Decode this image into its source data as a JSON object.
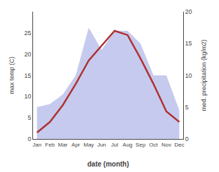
{
  "chart_data": {
    "type": "line",
    "categories": [
      "Jan",
      "Feb",
      "Mar",
      "Apr",
      "May",
      "Jun",
      "Jul",
      "Aug",
      "Sep",
      "Oct",
      "Nov",
      "Dec"
    ],
    "series": [
      {
        "type": "area",
        "color": "#c5caee",
        "axis": "y2",
        "values": [
          5.0,
          5.5,
          7.0,
          10.0,
          17.5,
          14.0,
          17.0,
          17.0,
          15.0,
          10.0,
          10.0,
          4.5
        ]
      },
      {
        "type": "line",
        "color": "#b03030",
        "values": [
          1.5,
          4.0,
          8.0,
          13.0,
          18.5,
          22.0,
          25.5,
          24.5,
          19.0,
          13.0,
          6.5,
          4.0
        ]
      }
    ],
    "xlabel": "date (month)",
    "ylabel": "max temp (C)",
    "y2label": "med. precipitation (kg/m2)",
    "ylim": [
      0,
      30
    ],
    "yticks": [
      0,
      5,
      10,
      15,
      20,
      25
    ],
    "y2lim": [
      0,
      20
    ],
    "y2ticks": [
      0,
      5,
      10,
      15,
      20
    ],
    "grid": false
  }
}
